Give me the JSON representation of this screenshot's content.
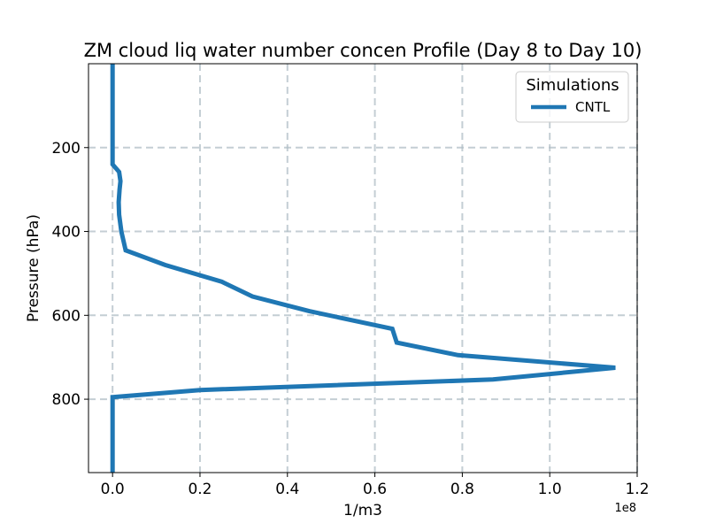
{
  "chart_data": {
    "type": "line",
    "title": "ZM cloud liq water number concen Profile (Day 8 to Day 10)",
    "xlabel": "1/m3",
    "ylabel": "Pressure (hPa)",
    "x_offset_label": "1e8",
    "x_scale": 100000000,
    "xlim": [
      -0.055,
      1.2
    ],
    "ylim": [
      975,
      0
    ],
    "y_inverted": true,
    "xticks": [
      0.0,
      0.2,
      0.4,
      0.6,
      0.8,
      1.0,
      1.2
    ],
    "xtick_labels": [
      "0.0",
      "0.2",
      "0.4",
      "0.6",
      "0.8",
      "1.0",
      "1.2"
    ],
    "yticks": [
      200,
      400,
      600,
      800
    ],
    "ytick_labels": [
      "200",
      "400",
      "600",
      "800"
    ],
    "grid": true,
    "legend": {
      "title": "Simulations",
      "position": "top-right"
    },
    "series": [
      {
        "name": "CNTL",
        "color": "#1f77b4",
        "x": [
          0.0,
          0.0,
          0.0,
          0.0,
          0.0,
          0.0,
          0.015,
          0.018,
          0.016,
          0.014,
          0.015,
          0.02,
          0.03,
          0.12,
          0.25,
          0.32,
          0.45,
          0.64,
          0.65,
          0.79,
          1.15,
          0.87,
          0.2,
          0.0,
          0.0,
          0.0,
          0.0
        ],
        "y": [
          0,
          100,
          150,
          200,
          220,
          240,
          258,
          280,
          300,
          330,
          360,
          400,
          445,
          480,
          520,
          555,
          590,
          632,
          665,
          695,
          725,
          753,
          778,
          795,
          850,
          900,
          975
        ]
      }
    ]
  }
}
